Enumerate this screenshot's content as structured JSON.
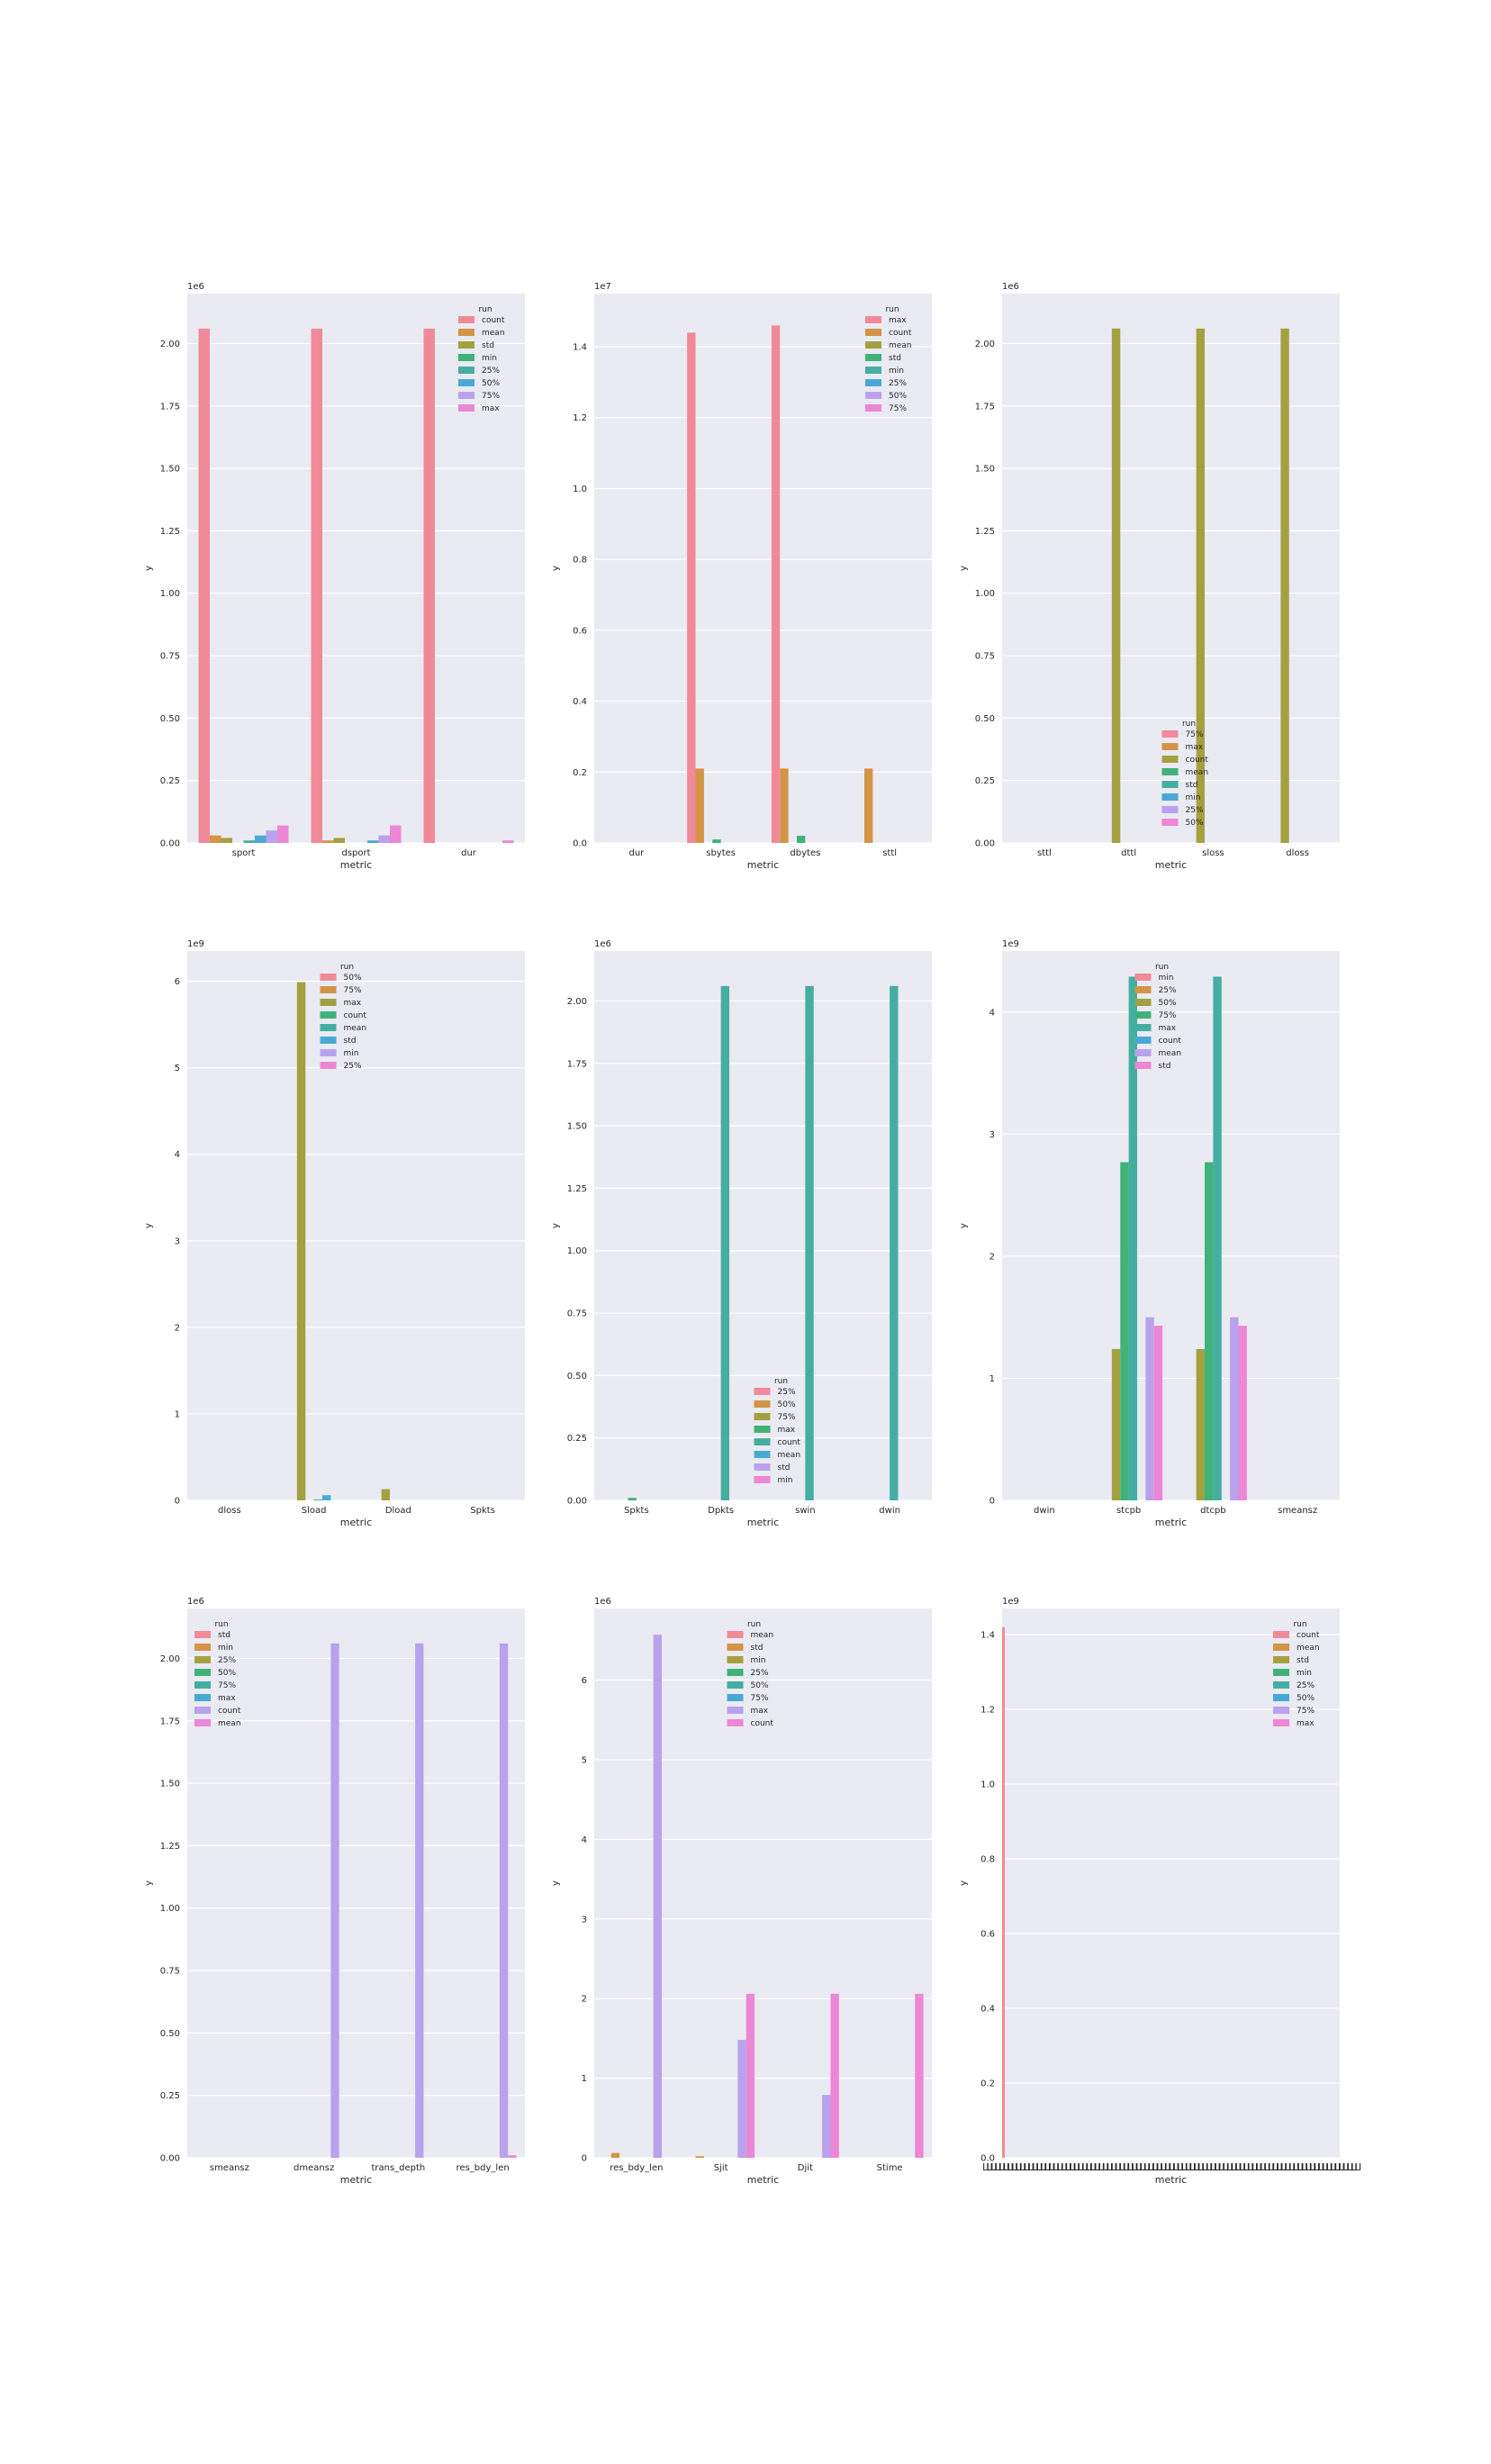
{
  "colors": {
    "palette": [
      "#f08a99",
      "#d39446",
      "#a3a13f",
      "#40b279",
      "#44aea1",
      "#49a9d5",
      "#b9a2ec",
      "#ec86d5"
    ],
    "background": "#eaeaf2",
    "grid": "#ffffff"
  },
  "chart_data": [
    {
      "type": "bar",
      "xlabel": "metric",
      "ylabel": "y",
      "scale_label": "1e6",
      "ylim": [
        0,
        2.2
      ],
      "yticks": [
        "0.00",
        "0.25",
        "0.50",
        "0.75",
        "1.00",
        "1.25",
        "1.50",
        "1.75",
        "2.00"
      ],
      "ytick_values": [
        0,
        0.25,
        0.5,
        0.75,
        1.0,
        1.25,
        1.5,
        1.75,
        2.0
      ],
      "categories": [
        "sport",
        "dsport",
        "dur"
      ],
      "legend_title": "run",
      "legend_position": "top-right",
      "legend": [
        "count",
        "mean",
        "std",
        "min",
        "25%",
        "50%",
        "75%",
        "max"
      ],
      "series_colors": [
        0,
        1,
        2,
        3,
        4,
        5,
        6,
        7
      ],
      "values": [
        [
          2.06,
          2.06,
          2.06
        ],
        [
          0.03,
          0.01,
          0
        ],
        [
          0.02,
          0.02,
          0
        ],
        [
          0,
          0,
          0
        ],
        [
          0.01,
          0,
          0
        ],
        [
          0.03,
          0.01,
          0
        ],
        [
          0.05,
          0.03,
          0
        ],
        [
          0.07,
          0.07,
          0.01
        ]
      ]
    },
    {
      "type": "bar",
      "xlabel": "metric",
      "ylabel": "y",
      "scale_label": "1e7",
      "ylim": [
        0,
        1.55
      ],
      "yticks": [
        "0.0",
        "0.2",
        "0.4",
        "0.6",
        "0.8",
        "1.0",
        "1.2",
        "1.4"
      ],
      "ytick_values": [
        0,
        0.2,
        0.4,
        0.6,
        0.8,
        1.0,
        1.2,
        1.4
      ],
      "categories": [
        "dur",
        "sbytes",
        "dbytes",
        "sttl"
      ],
      "legend_title": "run",
      "legend_position": "top-right",
      "legend": [
        "max",
        "count",
        "mean",
        "std",
        "min",
        "25%",
        "50%",
        "75%"
      ],
      "series_colors": [
        0,
        1,
        2,
        3,
        4,
        5,
        6,
        7
      ],
      "values": [
        [
          0,
          1.44,
          1.46,
          0
        ],
        [
          0,
          0.21,
          0.21,
          0.21
        ],
        [
          0,
          0,
          0,
          0
        ],
        [
          0,
          0.01,
          0.02,
          0
        ],
        [
          0,
          0,
          0,
          0
        ],
        [
          0,
          0,
          0,
          0
        ],
        [
          0,
          0,
          0,
          0
        ],
        [
          0,
          0,
          0,
          0
        ]
      ]
    },
    {
      "type": "bar",
      "xlabel": "metric",
      "ylabel": "y",
      "scale_label": "1e6",
      "ylim": [
        0,
        2.2
      ],
      "yticks": [
        "0.00",
        "0.25",
        "0.50",
        "0.75",
        "1.00",
        "1.25",
        "1.50",
        "1.75",
        "2.00"
      ],
      "ytick_values": [
        0,
        0.25,
        0.5,
        0.75,
        1.0,
        1.25,
        1.5,
        1.75,
        2.0
      ],
      "categories": [
        "sttl",
        "dttl",
        "sloss",
        "dloss"
      ],
      "legend_title": "run",
      "legend_position": "bottom-center",
      "legend": [
        "75%",
        "max",
        "count",
        "mean",
        "std",
        "min",
        "25%",
        "50%"
      ],
      "series_colors": [
        0,
        1,
        2,
        3,
        4,
        5,
        6,
        7
      ],
      "values": [
        [
          0,
          0,
          0,
          0
        ],
        [
          0,
          0,
          0,
          0
        ],
        [
          0,
          2.06,
          2.06,
          2.06
        ],
        [
          0,
          0,
          0,
          0
        ],
        [
          0,
          0,
          0,
          0
        ],
        [
          0,
          0,
          0,
          0
        ],
        [
          0,
          0,
          0,
          0
        ],
        [
          0,
          0,
          0,
          0
        ]
      ]
    },
    {
      "type": "bar",
      "xlabel": "metric",
      "ylabel": "y",
      "scale_label": "1e9",
      "ylim": [
        0,
        6.35
      ],
      "yticks": [
        "0",
        "1",
        "2",
        "3",
        "4",
        "5",
        "6"
      ],
      "ytick_values": [
        0,
        1,
        2,
        3,
        4,
        5,
        6
      ],
      "categories": [
        "dloss",
        "Sload",
        "Dload",
        "Spkts"
      ],
      "legend_title": "run",
      "legend_position": "top-center",
      "legend": [
        "50%",
        "75%",
        "max",
        "count",
        "mean",
        "std",
        "min",
        "25%"
      ],
      "series_colors": [
        0,
        1,
        2,
        3,
        4,
        5,
        6,
        7
      ],
      "values": [
        [
          0,
          0,
          0,
          0
        ],
        [
          0,
          0,
          0,
          0
        ],
        [
          0,
          5.99,
          0.13,
          0
        ],
        [
          0,
          0,
          0,
          0
        ],
        [
          0,
          0.01,
          0,
          0
        ],
        [
          0,
          0.06,
          0,
          0
        ],
        [
          0,
          0,
          0,
          0
        ],
        [
          0,
          0,
          0,
          0
        ]
      ]
    },
    {
      "type": "bar",
      "xlabel": "metric",
      "ylabel": "y",
      "scale_label": "1e6",
      "ylim": [
        0,
        2.2
      ],
      "yticks": [
        "0.00",
        "0.25",
        "0.50",
        "0.75",
        "1.00",
        "1.25",
        "1.50",
        "1.75",
        "2.00"
      ],
      "ytick_values": [
        0,
        0.25,
        0.5,
        0.75,
        1.0,
        1.25,
        1.5,
        1.75,
        2.0
      ],
      "categories": [
        "Spkts",
        "Dpkts",
        "swin",
        "dwin"
      ],
      "legend_title": "run",
      "legend_position": "bottom-center",
      "legend": [
        "25%",
        "50%",
        "75%",
        "max",
        "count",
        "mean",
        "std",
        "min"
      ],
      "series_colors": [
        0,
        1,
        2,
        3,
        4,
        5,
        6,
        7
      ],
      "values": [
        [
          0,
          0,
          0,
          0
        ],
        [
          0,
          0,
          0,
          0
        ],
        [
          0,
          0,
          0,
          0
        ],
        [
          0.01,
          0,
          0,
          0
        ],
        [
          0,
          2.06,
          2.06,
          2.06
        ],
        [
          0,
          0,
          0,
          0
        ],
        [
          0,
          0,
          0,
          0
        ],
        [
          0,
          0,
          0,
          0
        ]
      ]
    },
    {
      "type": "bar",
      "xlabel": "metric",
      "ylabel": "y",
      "scale_label": "1e9",
      "ylim": [
        0,
        4.5
      ],
      "yticks": [
        "0",
        "1",
        "2",
        "3",
        "4"
      ],
      "ytick_values": [
        0,
        1,
        2,
        3,
        4
      ],
      "categories": [
        "dwin",
        "stcpb",
        "dtcpb",
        "smeansz"
      ],
      "legend_title": "run",
      "legend_position": "top-center",
      "legend": [
        "min",
        "25%",
        "50%",
        "75%",
        "max",
        "count",
        "mean",
        "std"
      ],
      "series_colors": [
        0,
        1,
        2,
        3,
        4,
        5,
        6,
        7
      ],
      "values": [
        [
          0,
          0,
          0,
          0
        ],
        [
          0,
          0,
          0,
          0
        ],
        [
          0,
          1.24,
          1.24,
          0
        ],
        [
          0,
          2.77,
          2.77,
          0
        ],
        [
          0,
          4.29,
          4.29,
          0
        ],
        [
          0,
          0,
          0,
          0
        ],
        [
          0,
          1.5,
          1.5,
          0
        ],
        [
          0,
          1.43,
          1.43,
          0
        ]
      ]
    },
    {
      "type": "bar",
      "xlabel": "metric",
      "ylabel": "y",
      "scale_label": "1e6",
      "ylim": [
        0,
        2.2
      ],
      "yticks": [
        "0.00",
        "0.25",
        "0.50",
        "0.75",
        "1.00",
        "1.25",
        "1.50",
        "1.75",
        "2.00"
      ],
      "ytick_values": [
        0,
        0.25,
        0.5,
        0.75,
        1.0,
        1.25,
        1.5,
        1.75,
        2.0
      ],
      "categories": [
        "smeansz",
        "dmeansz",
        "trans_depth",
        "res_bdy_len"
      ],
      "legend_title": "run",
      "legend_position": "top-left",
      "legend": [
        "std",
        "min",
        "25%",
        "50%",
        "75%",
        "max",
        "count",
        "mean"
      ],
      "series_colors": [
        0,
        1,
        2,
        3,
        4,
        5,
        6,
        7
      ],
      "values": [
        [
          0,
          0,
          0,
          0
        ],
        [
          0,
          0,
          0,
          0
        ],
        [
          0,
          0,
          0,
          0
        ],
        [
          0,
          0,
          0,
          0
        ],
        [
          0,
          0,
          0,
          0
        ],
        [
          0,
          0,
          0,
          0
        ],
        [
          0,
          2.06,
          2.06,
          2.06
        ],
        [
          0,
          0,
          0,
          0.01
        ]
      ]
    },
    {
      "type": "bar",
      "xlabel": "metric",
      "ylabel": "y",
      "scale_label": "1e6",
      "ylim": [
        0,
        6.9
      ],
      "yticks": [
        "0",
        "1",
        "2",
        "3",
        "4",
        "5",
        "6"
      ],
      "ytick_values": [
        0,
        1,
        2,
        3,
        4,
        5,
        6
      ],
      "categories": [
        "res_bdy_len",
        "Sjit",
        "Djit",
        "Stime"
      ],
      "legend_title": "run",
      "legend_position": "top-center",
      "legend": [
        "mean",
        "std",
        "min",
        "25%",
        "50%",
        "75%",
        "max",
        "count"
      ],
      "series_colors": [
        0,
        1,
        2,
        3,
        4,
        5,
        6,
        7
      ],
      "values": [
        [
          0,
          0,
          0,
          0
        ],
        [
          0.06,
          0.02,
          0,
          0
        ],
        [
          0,
          0,
          0,
          0
        ],
        [
          0,
          0,
          0,
          0
        ],
        [
          0,
          0,
          0,
          0
        ],
        [
          0,
          0,
          0,
          0
        ],
        [
          6.57,
          1.48,
          0.79,
          0
        ],
        [
          0,
          2.06,
          2.06,
          2.06
        ]
      ]
    },
    {
      "type": "bar",
      "xlabel": "metric",
      "ylabel": "y",
      "scale_label": "1e9",
      "ylim": [
        0,
        1.47
      ],
      "yticks": [
        "0.0",
        "0.2",
        "0.4",
        "0.6",
        "0.8",
        "1.0",
        "1.2",
        "1.4"
      ],
      "ytick_values": [
        0,
        0.2,
        0.4,
        0.6,
        0.8,
        1.0,
        1.2,
        1.4
      ],
      "categories": [],
      "dense_first_value": 1.42,
      "legend_title": "run",
      "legend_position": "top-right",
      "legend": [
        "count",
        "mean",
        "std",
        "min",
        "25%",
        "50%",
        "75%",
        "max"
      ],
      "series_colors": [
        0,
        1,
        2,
        3,
        4,
        5,
        6,
        7
      ],
      "values": []
    }
  ]
}
